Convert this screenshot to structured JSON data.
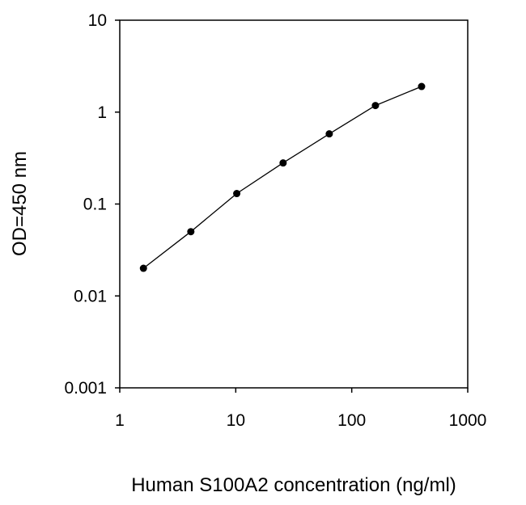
{
  "chart_data": {
    "type": "scatter",
    "title": "",
    "xlabel": "Human S100A2 concentration (ng/ml)",
    "ylabel": "OD=450 nm",
    "x_scale": "log",
    "y_scale": "log",
    "xlim": [
      1,
      1000
    ],
    "ylim": [
      0.001,
      10
    ],
    "x_ticks": [
      "1",
      "10",
      "100",
      "1000"
    ],
    "y_ticks": [
      "0.001",
      "0.01",
      "0.1",
      "1",
      "10"
    ],
    "grid": false,
    "legend": "none",
    "marker_color": "#000000",
    "line_color": "#000000",
    "series": [
      {
        "x": [
          1.6,
          4.1,
          10.2,
          25.6,
          64,
          160,
          400
        ],
        "y": [
          0.02,
          0.05,
          0.13,
          0.28,
          0.58,
          1.18,
          1.9
        ]
      }
    ]
  }
}
